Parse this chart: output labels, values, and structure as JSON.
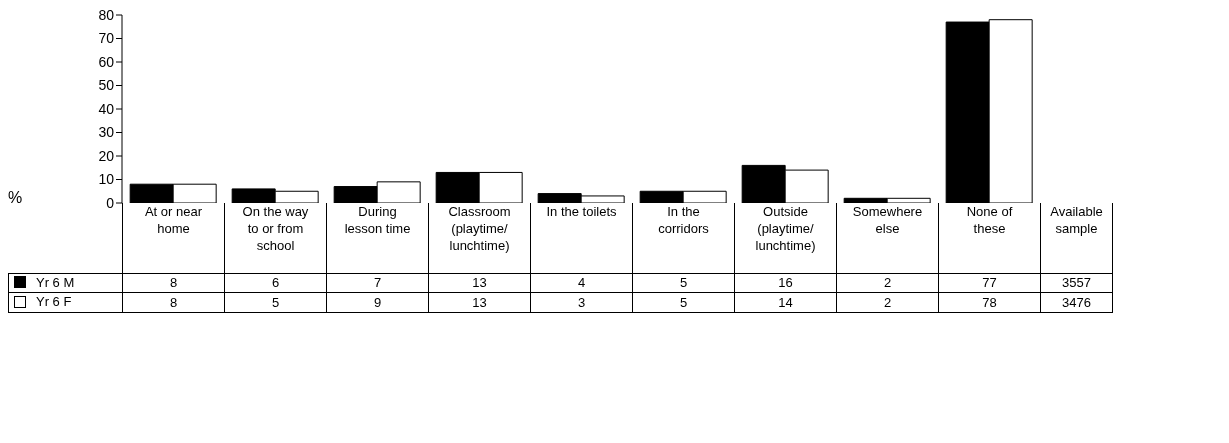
{
  "chart_data": {
    "type": "bar",
    "ylabel": "%",
    "categories": [
      "At or near home",
      "On the way to or from school",
      "During lesson time",
      "Classroom (playtime/ lunchtime)",
      "In the toilets",
      "In the corridors",
      "Outside (playtime/ lunchtime)",
      "Somewhere else",
      "None of these"
    ],
    "series": [
      {
        "name": "Yr 6 M",
        "color": "#000000",
        "values": [
          8,
          6,
          7,
          13,
          4,
          5,
          16,
          2,
          77
        ]
      },
      {
        "name": "Yr 6 F",
        "color": "#ffffff",
        "values": [
          8,
          5,
          9,
          13,
          3,
          5,
          14,
          2,
          78
        ]
      }
    ],
    "ylim": [
      0,
      80
    ],
    "yticks": [
      0,
      10,
      20,
      30,
      40,
      50,
      60,
      70,
      80
    ],
    "data_labels": true,
    "legend": "bottom",
    "grid": false,
    "annotations": [
      "Available sample",
      "3557",
      "3476"
    ]
  }
}
